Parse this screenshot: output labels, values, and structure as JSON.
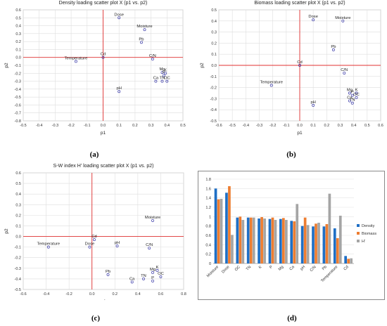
{
  "chart_data": [
    {
      "type": "scatter",
      "panel_label": "(a)",
      "title": "Density loading scatter plot X (p1 vs. p2)",
      "xlabel": "p1",
      "ylabel": "p2",
      "xlim": [
        -0.5,
        0.5
      ],
      "ylim": [
        -0.8,
        0.6
      ],
      "xticks": [
        "-0.5",
        "-0.4",
        "-0.3",
        "-0.2",
        "-0.1",
        "0.0",
        "0.1",
        "0.2",
        "0.3",
        "0.4",
        "0.5"
      ],
      "yticks": [
        "0.6",
        "0.5",
        "0.4",
        "0.3",
        "0.2",
        "0.1",
        "0.0",
        "-0.1",
        "-0.2",
        "-0.3",
        "-0.4",
        "-0.5",
        "-0.6",
        "-0.7",
        "-0.8"
      ],
      "grid": true,
      "points": [
        {
          "label": "Dose",
          "x": 0.1,
          "y": 0.5
        },
        {
          "label": "Moisture",
          "x": 0.26,
          "y": 0.35
        },
        {
          "label": "Pb",
          "x": 0.24,
          "y": 0.19
        },
        {
          "label": "Cd",
          "x": 0.0,
          "y": 0.0
        },
        {
          "label": "Temperature",
          "x": -0.17,
          "y": -0.05
        },
        {
          "label": "C/N",
          "x": 0.31,
          "y": -0.02
        },
        {
          "label": "Mg",
          "x": 0.37,
          "y": -0.19
        },
        {
          "label": "K",
          "x": 0.39,
          "y": -0.2
        },
        {
          "label": "P",
          "x": 0.38,
          "y": -0.23
        },
        {
          "label": "Ca",
          "x": 0.33,
          "y": -0.3
        },
        {
          "label": "TN",
          "x": 0.37,
          "y": -0.3
        },
        {
          "label": "OC",
          "x": 0.4,
          "y": -0.3
        },
        {
          "label": "pH",
          "x": 0.1,
          "y": -0.43
        }
      ]
    },
    {
      "type": "scatter",
      "panel_label": "(b)",
      "title": "Biomass loading scatter plot X (p1 vs. p2)",
      "xlabel": "p1",
      "ylabel": "p2",
      "xlim": [
        -0.6,
        0.6
      ],
      "ylim": [
        -0.5,
        0.5
      ],
      "xticks": [
        "-0.6",
        "-0.5",
        "-0.4",
        "-0.3",
        "-0.2",
        "-0.1",
        "0.0",
        "0.1",
        "0.2",
        "0.3",
        "0.4",
        "0.5",
        "0.6"
      ],
      "yticks": [
        "0.5",
        "0.4",
        "0.3",
        "0.2",
        "0.1",
        "0.0",
        "-0.1",
        "-0.2",
        "-0.3",
        "-0.4",
        "-0.5"
      ],
      "grid": true,
      "points": [
        {
          "label": "Dose",
          "x": 0.1,
          "y": 0.41
        },
        {
          "label": "Moisture",
          "x": 0.32,
          "y": 0.4
        },
        {
          "label": "Pb",
          "x": 0.25,
          "y": 0.14
        },
        {
          "label": "Cd",
          "x": 0.0,
          "y": 0.0
        },
        {
          "label": "C/N",
          "x": 0.33,
          "y": -0.07
        },
        {
          "label": "Temperature",
          "x": -0.21,
          "y": -0.18
        },
        {
          "label": "Mg",
          "x": 0.37,
          "y": -0.25
        },
        {
          "label": "K",
          "x": 0.42,
          "y": -0.25
        },
        {
          "label": "P",
          "x": 0.39,
          "y": -0.27
        },
        {
          "label": "OC",
          "x": 0.42,
          "y": -0.29
        },
        {
          "label": "Ca",
          "x": 0.37,
          "y": -0.32
        },
        {
          "label": "TN",
          "x": 0.39,
          "y": -0.34
        },
        {
          "label": "pH",
          "x": 0.1,
          "y": -0.36
        }
      ]
    },
    {
      "type": "scatter",
      "panel_label": "(c)",
      "title": "S-W index H' loading scatter plot X (p1 vs. p2)",
      "xlabel": "p1",
      "ylabel": "p2",
      "xlim": [
        -0.6,
        0.8
      ],
      "ylim": [
        -0.5,
        0.6
      ],
      "xticks": [
        "-0.6",
        "-0.4",
        "-0.2",
        "0.0",
        "0.2",
        "0.4",
        "0.6",
        "0.8"
      ],
      "yticks": [
        "0.6",
        "0.5",
        "0.4",
        "0.3",
        "0.2",
        "0.1",
        "0.0",
        "-0.1",
        "-0.2",
        "-0.3",
        "-0.4",
        "-0.5"
      ],
      "grid": true,
      "points": [
        {
          "label": "Moisture",
          "x": 0.53,
          "y": 0.15
        },
        {
          "label": "Cd",
          "x": 0.02,
          "y": -0.03
        },
        {
          "label": "Temperature",
          "x": -0.38,
          "y": -0.1
        },
        {
          "label": "Dose",
          "x": -0.02,
          "y": -0.1
        },
        {
          "label": "pH",
          "x": 0.22,
          "y": -0.09
        },
        {
          "label": "C/N",
          "x": 0.5,
          "y": -0.11
        },
        {
          "label": "K",
          "x": 0.57,
          "y": -0.32
        },
        {
          "label": "Mg",
          "x": 0.53,
          "y": -0.34
        },
        {
          "label": "OC",
          "x": 0.6,
          "y": -0.38
        },
        {
          "label": "Pb",
          "x": 0.14,
          "y": -0.36
        },
        {
          "label": "TN",
          "x": 0.45,
          "y": -0.4
        },
        {
          "label": "P",
          "x": 0.53,
          "y": -0.42
        },
        {
          "label": "Ca",
          "x": 0.35,
          "y": -0.43
        }
      ]
    },
    {
      "type": "bar",
      "panel_label": "(d)",
      "categories": [
        "Moisture",
        "Dose",
        "OC",
        "TN",
        "K",
        "P",
        "Mg",
        "Ca",
        "pH",
        "C/N",
        "Pb",
        "Temperature",
        "Cd"
      ],
      "ylim": [
        0,
        1.8
      ],
      "yticks": [
        "0",
        "0.2",
        "0.4",
        "0.6",
        "0.8",
        "1",
        "1.2",
        "1.4",
        "1.6",
        "1.8"
      ],
      "legend_position": "right",
      "series": [
        {
          "name": "Density",
          "color": "#1f6fc5",
          "values": [
            1.6,
            1.51,
            0.98,
            0.98,
            0.96,
            0.95,
            0.95,
            0.91,
            0.8,
            0.79,
            0.79,
            0.75,
            0.16
          ]
        },
        {
          "name": "Biomass",
          "color": "#ed7d31",
          "values": [
            1.37,
            1.65,
            1.0,
            0.98,
            0.99,
            0.98,
            0.97,
            0.9,
            0.98,
            0.85,
            0.84,
            0.54,
            0.1
          ]
        },
        {
          "name": "H'",
          "color": "#a5a5a5",
          "values": [
            1.38,
            0.61,
            0.93,
            0.98,
            0.96,
            0.93,
            0.93,
            1.27,
            0.82,
            0.87,
            1.49,
            1.02,
            0.11
          ]
        }
      ]
    }
  ]
}
